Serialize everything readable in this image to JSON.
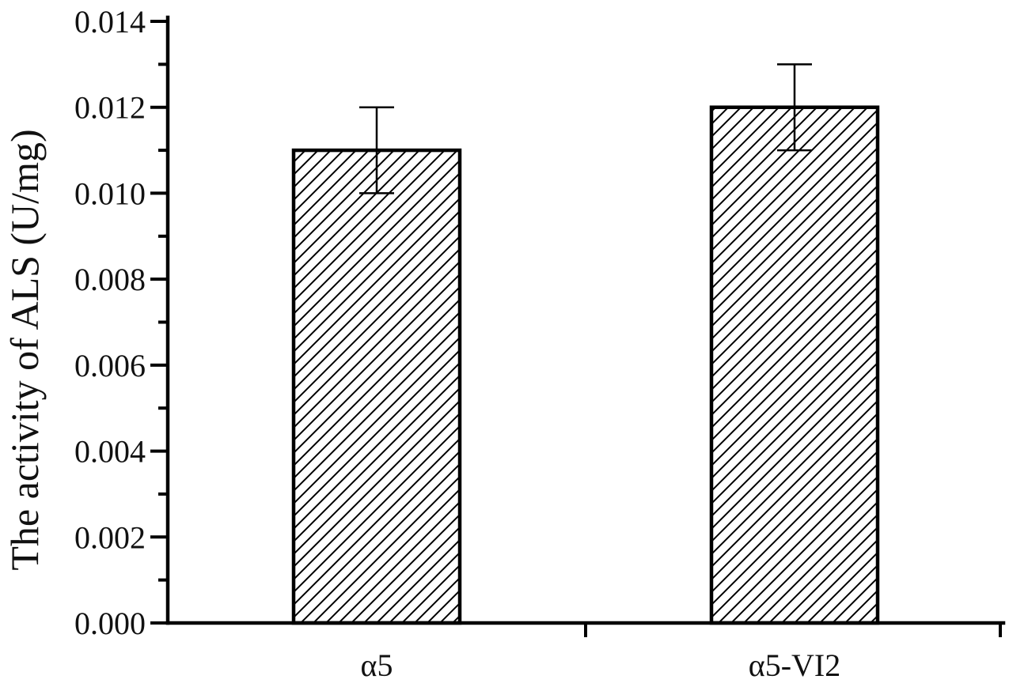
{
  "chart_data": {
    "type": "bar",
    "title": "",
    "xlabel": "",
    "ylabel": "The activity of ALS (U/mg)",
    "categories": [
      "α5",
      "α5-VI2"
    ],
    "series": [
      {
        "values": [
          0.011,
          0.012
        ],
        "error": [
          0.001,
          0.001
        ],
        "fill": "diagonal-hatch"
      }
    ],
    "ylim": [
      0,
      0.014
    ],
    "yticks": [
      "0.000",
      "0.002",
      "0.004",
      "0.006",
      "0.008",
      "0.010",
      "0.012",
      "0.014"
    ],
    "ytick_values": [
      0,
      0.002,
      0.004,
      0.006,
      0.008,
      0.01,
      0.012,
      0.014
    ],
    "grid": false,
    "legend": "none",
    "colors": {
      "axis": "#000000",
      "bar_fill": "#ffffff",
      "hatch": "#000000"
    }
  }
}
